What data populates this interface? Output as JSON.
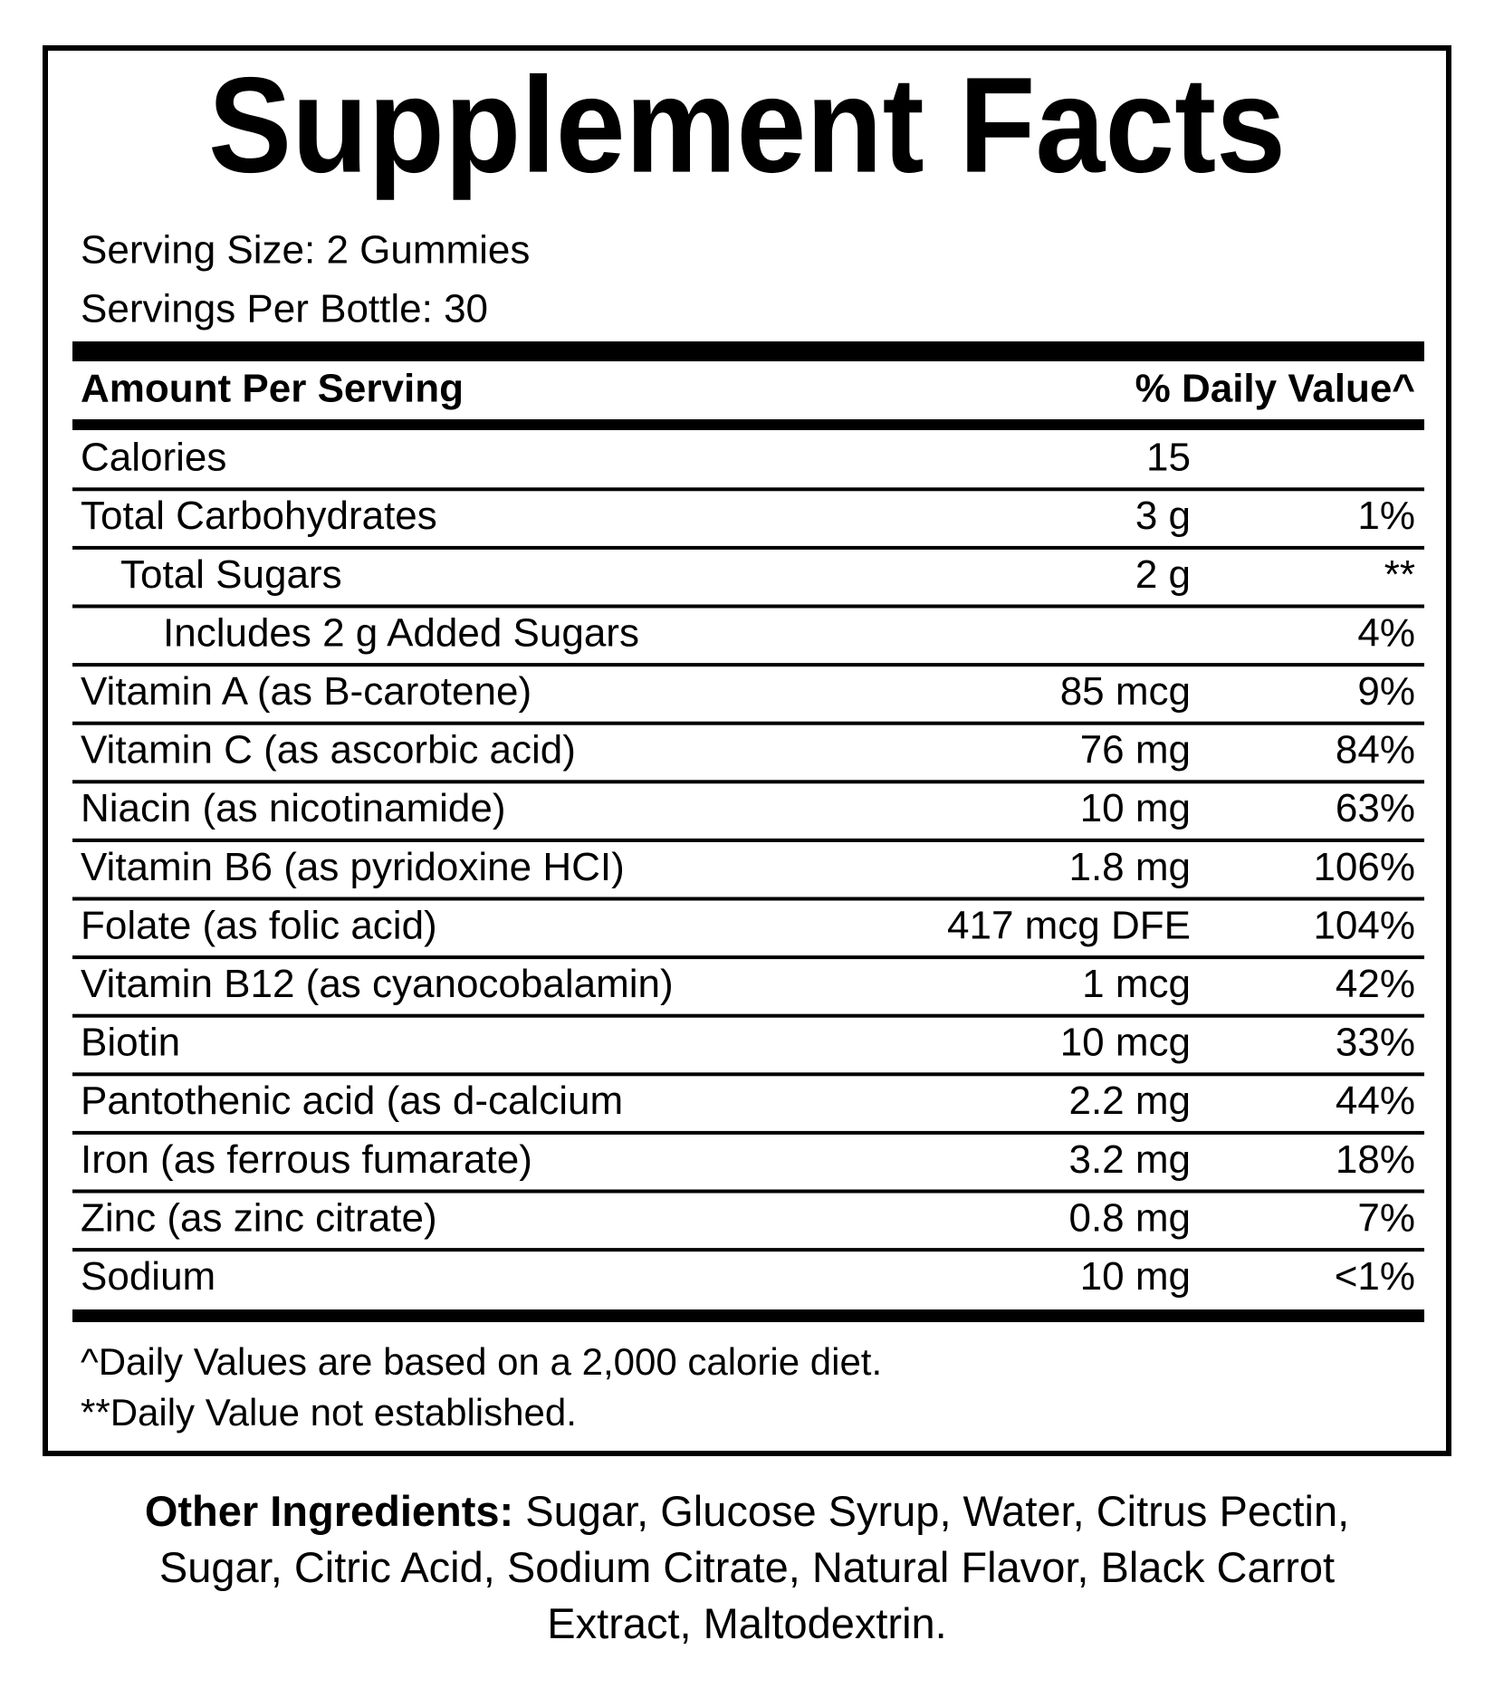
{
  "title": "Supplement Facts",
  "serving_size": "Serving Size: 2 Gummies",
  "servings_per_container": "Servings Per Bottle: 30",
  "header": {
    "amount": "Amount Per Serving",
    "daily_value": "% Daily Value^"
  },
  "rows": [
    {
      "name": "Calories",
      "amount": "15"
    },
    {
      "name": "Total Carbohydrates",
      "amount": "3 g",
      "dv": "1%"
    },
    {
      "name": "Total Sugars",
      "amount": "2 g",
      "dv": "**"
    },
    {
      "name": "Includes 2 g Added Sugars",
      "dv": "4%"
    },
    {
      "name": "Vitamin A (as B-carotene)",
      "amount": "85 mcg",
      "dv": "9%"
    },
    {
      "name": "Vitamin C (as ascorbic acid)",
      "amount": "76 mg",
      "dv": "84%"
    },
    {
      "name": "Niacin (as nicotinamide)",
      "amount": "10 mg",
      "dv": "63%"
    },
    {
      "name": "Vitamin B6 (as pyridoxine HCI)",
      "amount": "1.8 mg",
      "dv": "106%"
    },
    {
      "name": "Folate (as folic acid)",
      "amount": "417 mcg DFE",
      "dv": "104%"
    },
    {
      "name": "Vitamin B12 (as cyanocobalamin)",
      "amount": "1 mcg",
      "dv": "42%"
    },
    {
      "name": "Biotin",
      "amount": "10 mcg",
      "dv": "33%"
    },
    {
      "name": "Pantothenic acid (as d-calcium",
      "amount": "2.2 mg",
      "dv": "44%"
    },
    {
      "name": "Iron (as ferrous fumarate)",
      "amount": "3.2 mg",
      "dv": "18%"
    },
    {
      "name": "Zinc (as zinc citrate)",
      "amount": "0.8 mg",
      "dv": "7%"
    },
    {
      "name": "Sodium",
      "amount": "10 mg",
      "dv": "<1%"
    }
  ],
  "footnotes": [
    "^Daily Values are based on a 2,000 calorie diet.",
    "**Daily Value not established."
  ],
  "other_ingredients": {
    "label": "Other Ingredients:",
    "text": "Sugar, Glucose Syrup, Water, Citrus Pectin, Sugar, Citric Acid, Sodium Citrate, Natural Flavor, Black Carrot Extract, Maltodextrin."
  }
}
